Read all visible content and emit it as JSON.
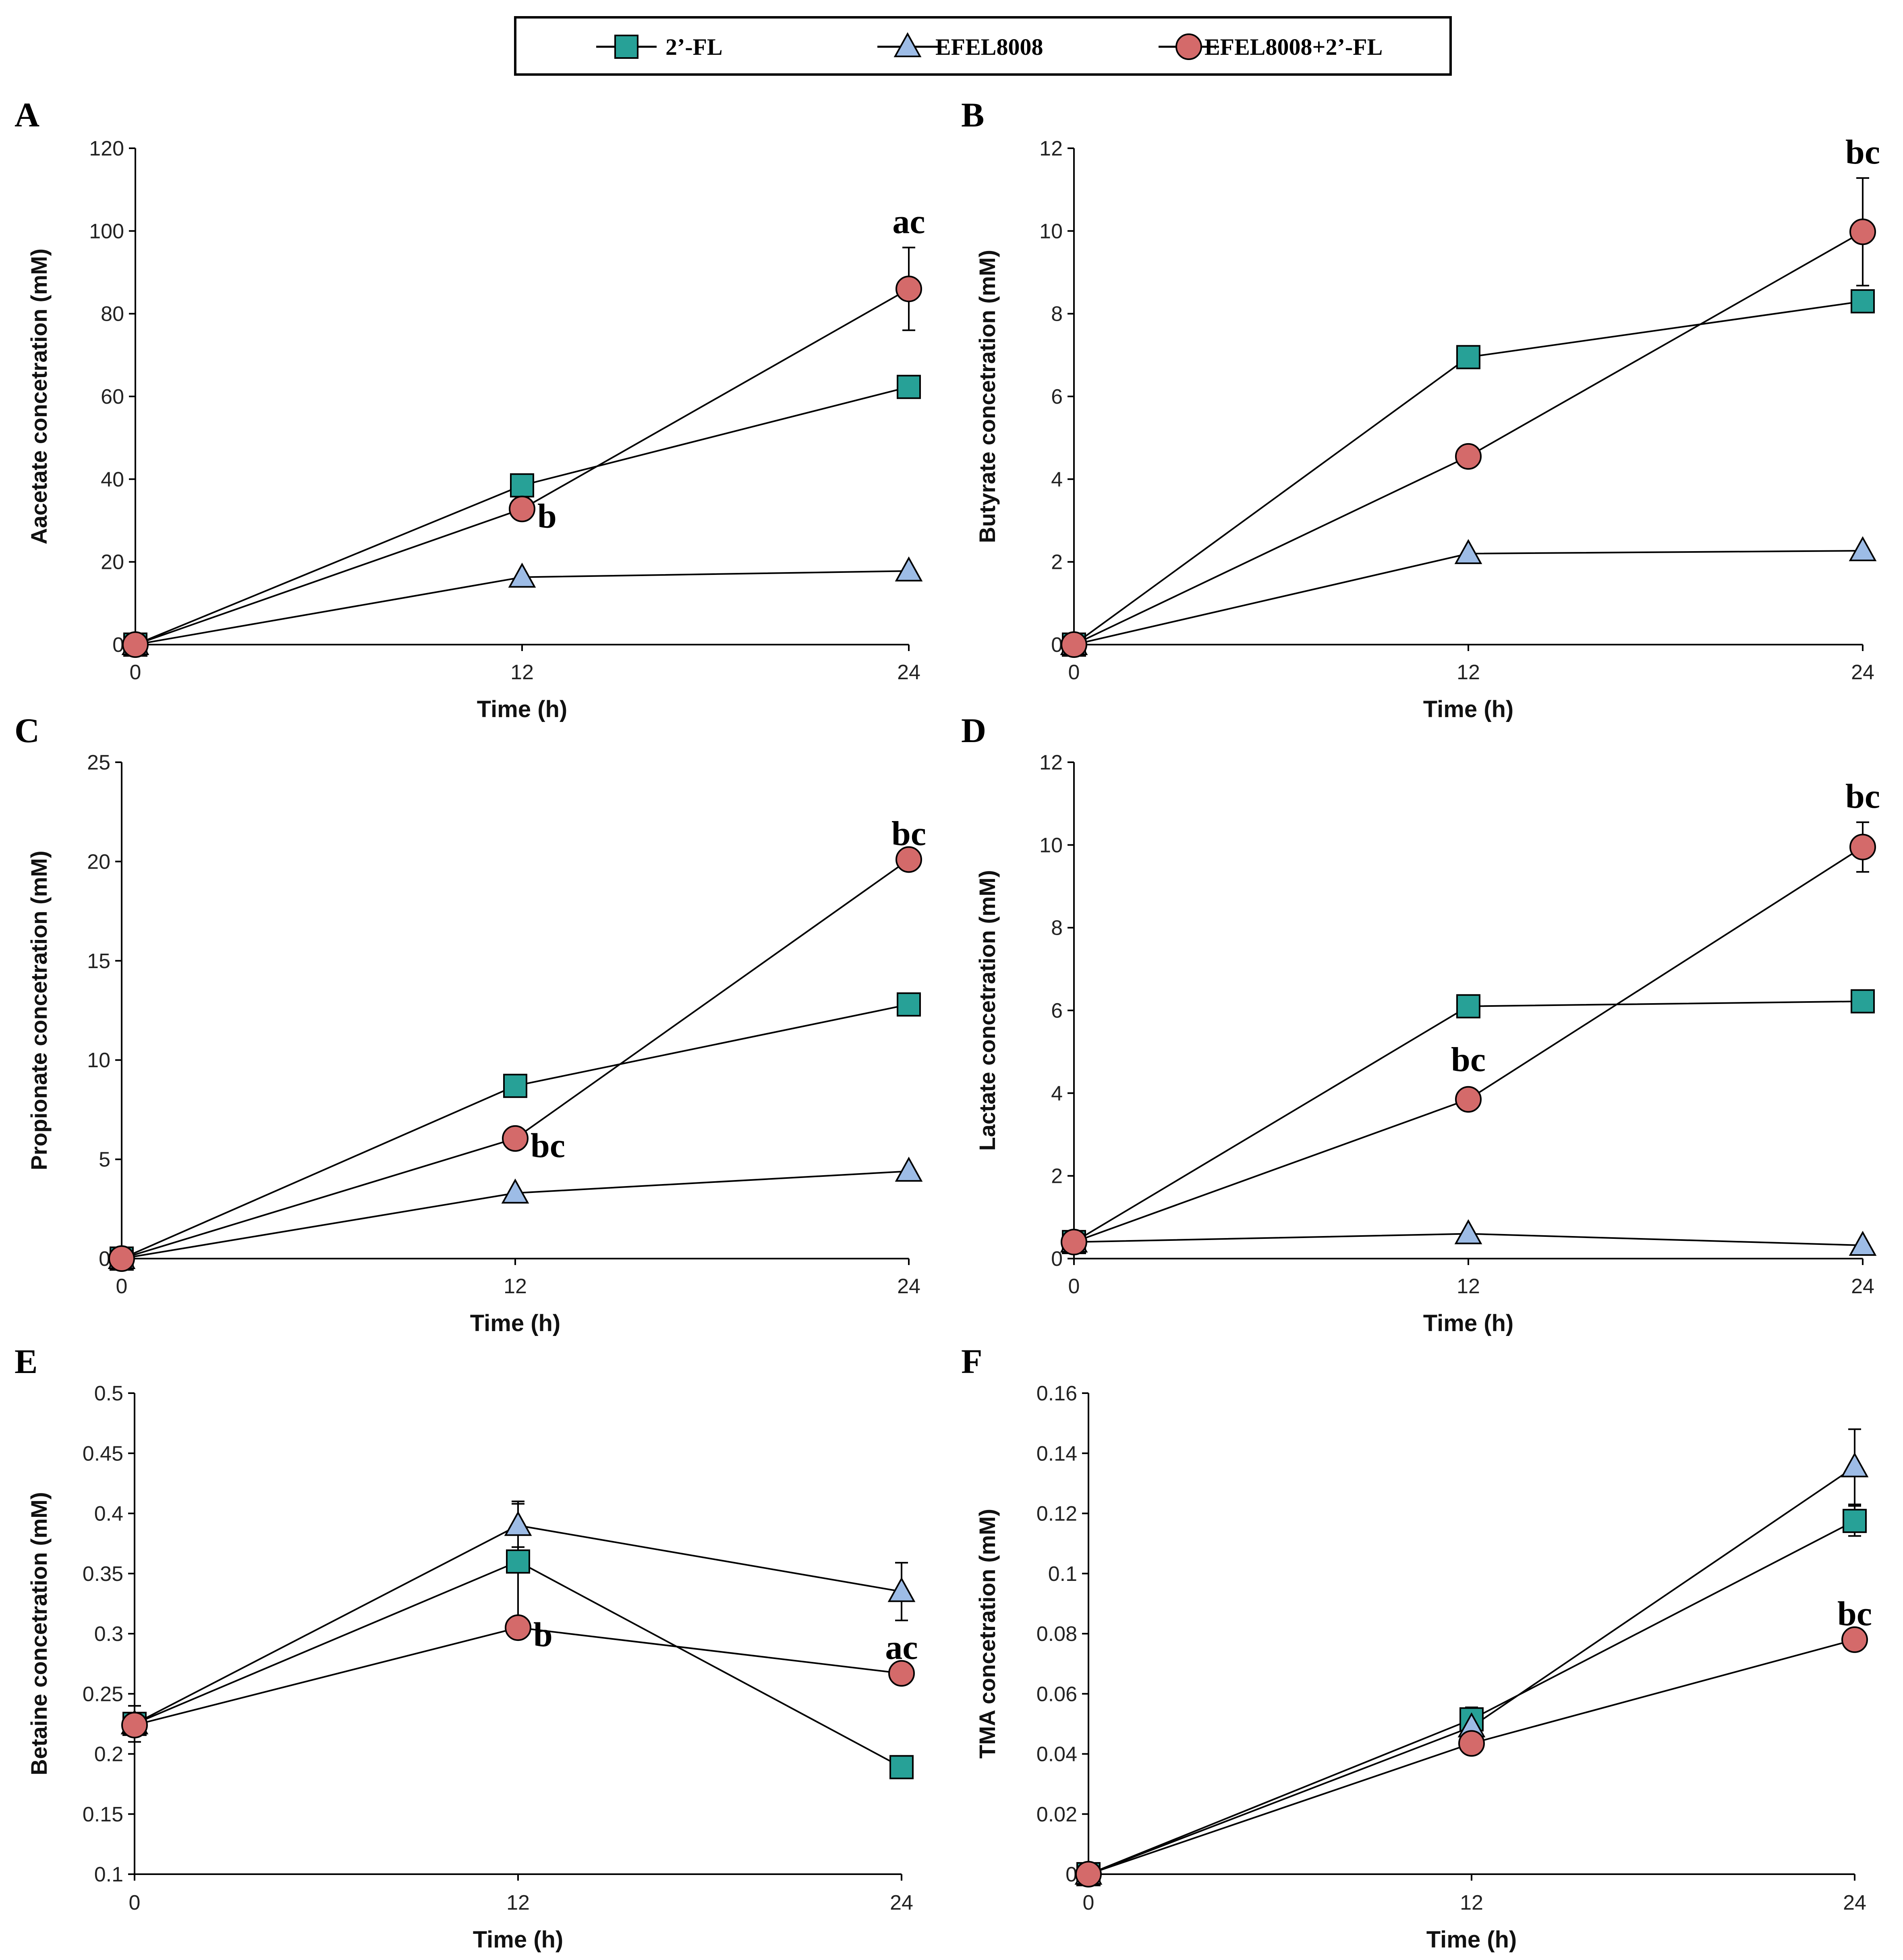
{
  "legend": [
    {
      "name": "2’-FL",
      "marker": "square",
      "color": "#27A197"
    },
    {
      "name": "EFEL8008",
      "marker": "triangle",
      "color": "#9DBCE6"
    },
    {
      "name": "EFEL8008+2’-FL",
      "marker": "circle",
      "color": "#D46A6A"
    }
  ],
  "chart_data": [
    {
      "panel": "A",
      "type": "line",
      "xlabel": "Time (h)",
      "ylabel": "Aacetate concetration (mM)",
      "x": [
        0,
        12,
        24
      ],
      "xticks": [
        "0",
        "12",
        "24"
      ],
      "ylim": [
        0,
        120
      ],
      "yticks": [
        "0",
        "20",
        "40",
        "60",
        "80",
        "100",
        "120"
      ],
      "series": [
        {
          "name": "2’-FL",
          "values": [
            0,
            38.5,
            62.3
          ]
        },
        {
          "name": "EFEL8008",
          "values": [
            0,
            16.3,
            17.8
          ]
        },
        {
          "name": "EFEL8008+2’-FL",
          "values": [
            0,
            32.8,
            86.0
          ],
          "errors": [
            0,
            0,
            10
          ]
        }
      ],
      "annotations": [
        {
          "text": "b",
          "x": 12,
          "series": 2
        },
        {
          "text": "ac",
          "x": 24,
          "series": 2
        }
      ]
    },
    {
      "panel": "B",
      "type": "line",
      "xlabel": "Time (h)",
      "ylabel": "Butyrate concetration (mM)",
      "x": [
        0,
        12,
        24
      ],
      "xticks": [
        "0",
        "12",
        "24"
      ],
      "ylim": [
        0,
        12
      ],
      "yticks": [
        "0",
        "2",
        "4",
        "6",
        "8",
        "10",
        "12"
      ],
      "series": [
        {
          "name": "2’-FL",
          "values": [
            0,
            6.95,
            8.3
          ]
        },
        {
          "name": "EFEL8008",
          "values": [
            0,
            2.2,
            2.27
          ]
        },
        {
          "name": "EFEL8008+2’-FL",
          "values": [
            0,
            4.55,
            9.98
          ],
          "errors": [
            0,
            0,
            1.3
          ]
        }
      ],
      "annotations": [
        {
          "text": "bc",
          "x": 24,
          "series": 2
        }
      ]
    },
    {
      "panel": "C",
      "type": "line",
      "xlabel": "Time (h)",
      "ylabel": "Propionate concetration (mM)",
      "x": [
        0,
        12,
        24
      ],
      "xticks": [
        "0",
        "12",
        "24"
      ],
      "ylim": [
        0,
        25
      ],
      "yticks": [
        "0",
        "5",
        "10",
        "15",
        "20",
        "25"
      ],
      "series": [
        {
          "name": "2’-FL",
          "values": [
            0,
            8.7,
            12.8
          ]
        },
        {
          "name": "EFEL8008",
          "values": [
            0,
            3.3,
            4.4
          ]
        },
        {
          "name": "EFEL8008+2’-FL",
          "values": [
            0,
            6.05,
            20.1
          ]
        }
      ],
      "annotations": [
        {
          "text": "bc",
          "x": 12,
          "series": 2
        },
        {
          "text": "bc",
          "x": 24,
          "series": 2
        }
      ]
    },
    {
      "panel": "D",
      "type": "line",
      "xlabel": "Time (h)",
      "ylabel": "Lactate concetration (mM)",
      "x": [
        0,
        12,
        24
      ],
      "xticks": [
        "0",
        "12",
        "24"
      ],
      "ylim": [
        0,
        12
      ],
      "yticks": [
        "0",
        "2",
        "4",
        "6",
        "8",
        "10",
        "12"
      ],
      "series": [
        {
          "name": "2’-FL",
          "values": [
            0.4,
            6.1,
            6.22
          ]
        },
        {
          "name": "EFEL8008",
          "values": [
            0.4,
            0.6,
            0.32
          ]
        },
        {
          "name": "EFEL8008+2’-FL",
          "values": [
            0.4,
            3.85,
            9.95
          ],
          "errors": [
            0,
            0,
            0.6
          ]
        }
      ],
      "annotations": [
        {
          "text": "bc",
          "x": 12,
          "series": 2
        },
        {
          "text": "bc",
          "x": 24,
          "series": 2
        }
      ]
    },
    {
      "panel": "E",
      "type": "line",
      "xlabel": "Time (h)",
      "ylabel": "Betaine concetration (mM)",
      "x": [
        0,
        12,
        24
      ],
      "xticks": [
        "0",
        "12",
        "24"
      ],
      "ylim": [
        0.1,
        0.5
      ],
      "yticks": [
        "0.1",
        "0.15",
        "0.2",
        "0.25",
        "0.3",
        "0.35",
        "0.4",
        "0.45",
        "0.5"
      ],
      "series": [
        {
          "name": "2’-FL",
          "values": [
            0.225,
            0.36,
            0.189
          ],
          "errors": [
            0.015,
            0.05,
            0
          ]
        },
        {
          "name": "EFEL8008",
          "values": [
            0.225,
            0.39,
            0.335
          ],
          "errors": [
            0,
            0.018,
            0.024
          ]
        },
        {
          "name": "EFEL8008+2’-FL",
          "values": [
            0.224,
            0.305,
            0.267
          ]
        }
      ],
      "annotations": [
        {
          "text": "b",
          "x": 12,
          "series": 2
        },
        {
          "text": "ac",
          "x": 24,
          "series": 2
        }
      ]
    },
    {
      "panel": "F",
      "type": "line",
      "xlabel": "Time (h)",
      "ylabel": "TMA concetration (mM)",
      "x": [
        0,
        12,
        24
      ],
      "xticks": [
        "0",
        "12",
        "24"
      ],
      "ylim": [
        0,
        0.16
      ],
      "yticks": [
        "0",
        "0.02",
        "0.04",
        "0.06",
        "0.08",
        "0.1",
        "0.12",
        "0.14",
        "0.16"
      ],
      "series": [
        {
          "name": "2’-FL",
          "values": [
            0,
            0.0515,
            0.1175
          ],
          "errors": [
            0,
            0.004,
            0.005
          ]
        },
        {
          "name": "EFEL8008",
          "values": [
            0,
            0.049,
            0.1355
          ],
          "errors": [
            0,
            0,
            0.0125
          ]
        },
        {
          "name": "EFEL8008+2’-FL",
          "values": [
            0,
            0.0435,
            0.078
          ]
        }
      ],
      "annotations": [
        {
          "text": "bc",
          "x": 24,
          "series": 2
        }
      ]
    }
  ]
}
